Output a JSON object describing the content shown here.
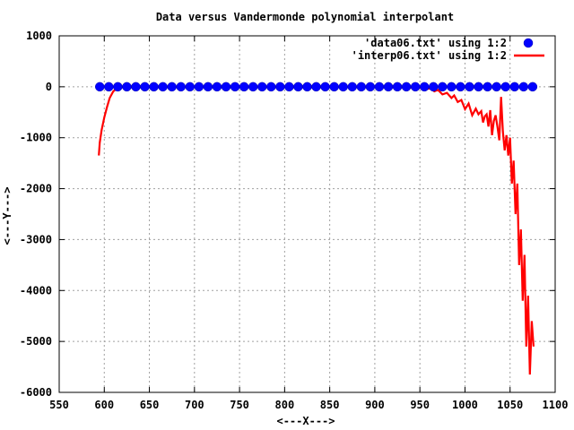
{
  "chart_data": {
    "type": "scatter",
    "title": "Data versus Vandermonde polynomial interpolant",
    "xlabel": "<---X--->",
    "ylabel": "<---Y--->",
    "xlim": [
      550,
      1100
    ],
    "ylim": [
      -6000,
      1000
    ],
    "xticks": [
      550,
      600,
      650,
      700,
      750,
      800,
      850,
      900,
      950,
      1000,
      1050,
      1100
    ],
    "yticks": [
      1000,
      0,
      -1000,
      -2000,
      -3000,
      -4000,
      -5000,
      -6000
    ],
    "grid": true,
    "legend_position": "top-right",
    "colors": {
      "data": "#0000ff",
      "interp": "#ff0000",
      "grid": "#a0a0a0"
    },
    "series": [
      {
        "name": "'data06.txt' using 1:2",
        "style": "points",
        "x": [
          595,
          605,
          615,
          625,
          635,
          645,
          655,
          665,
          675,
          685,
          695,
          705,
          715,
          725,
          735,
          745,
          755,
          765,
          775,
          785,
          795,
          805,
          815,
          825,
          835,
          845,
          855,
          865,
          875,
          885,
          895,
          905,
          915,
          925,
          935,
          945,
          955,
          965,
          975,
          985,
          995,
          1005,
          1015,
          1025,
          1035,
          1045,
          1055,
          1065,
          1075
        ],
        "y": [
          0,
          0,
          0,
          0,
          0,
          0,
          0,
          0,
          0,
          0,
          0,
          0,
          0,
          0,
          0,
          0,
          0,
          0,
          0,
          0,
          0,
          0,
          0,
          0,
          0,
          0,
          0,
          0,
          0,
          0,
          0,
          0,
          0,
          0,
          0,
          0,
          0,
          0,
          0,
          0,
          0,
          0,
          0,
          0,
          0,
          0,
          0,
          0,
          0
        ]
      },
      {
        "name": "'interp06.txt' using 1:2",
        "style": "lines",
        "x": [
          594,
          595,
          597,
          600,
          603,
          606,
          610,
          614,
          620,
          630,
          700,
          800,
          900,
          950,
          958,
          962,
          966,
          970,
          975,
          980,
          985,
          988,
          992,
          996,
          1000,
          1004,
          1008,
          1012,
          1015,
          1018,
          1020,
          1022,
          1024,
          1026,
          1028,
          1030,
          1032,
          1034,
          1036,
          1038,
          1040,
          1042,
          1044,
          1046,
          1048,
          1050,
          1052,
          1054,
          1056,
          1058,
          1060,
          1062,
          1064,
          1066,
          1068,
          1070,
          1072,
          1074,
          1076
        ],
        "y": [
          -1350,
          -1100,
          -850,
          -600,
          -400,
          -220,
          -90,
          -30,
          -5,
          0,
          0,
          0,
          0,
          -20,
          -40,
          -30,
          -90,
          -60,
          -150,
          -120,
          -220,
          -170,
          -300,
          -260,
          -440,
          -330,
          -560,
          -430,
          -540,
          -480,
          -700,
          -580,
          -540,
          -780,
          -460,
          -950,
          -670,
          -560,
          -790,
          -1050,
          -200,
          -880,
          -1250,
          -950,
          -1350,
          -1000,
          -1900,
          -1450,
          -2500,
          -1900,
          -3500,
          -2800,
          -4200,
          -3300,
          -5100,
          -4100,
          -5650,
          -4600,
          -5100
        ]
      }
    ]
  }
}
